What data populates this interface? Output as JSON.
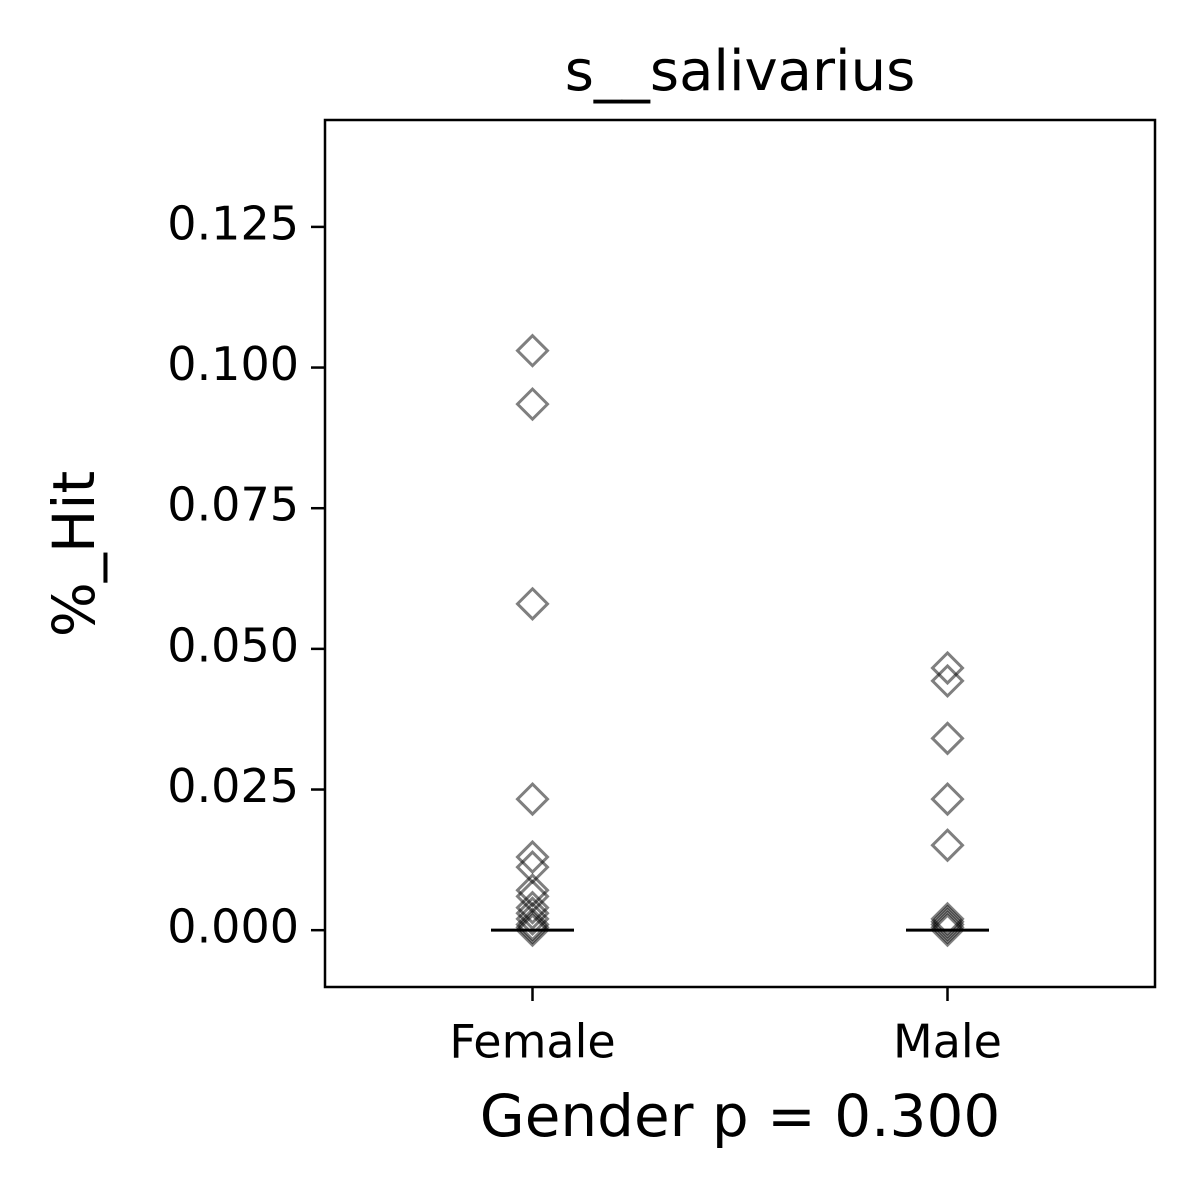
{
  "chart_data": {
    "type": "strip",
    "title": "s__salivarius",
    "x_label": "Gender p = 0.300",
    "y_label": "%_Hit",
    "categories": [
      "Female",
      "Male"
    ],
    "values": [
      [
        0.103,
        0.0935,
        0.058,
        0.0233,
        0.013,
        0.0112,
        0.0071,
        0.006,
        0.004,
        0.003,
        0.002,
        0.001,
        0.0005,
        0
      ],
      [
        0.0466,
        0.0443,
        0.0341,
        0.0233,
        0.0151,
        0.002,
        0.0015,
        0.001,
        0.0005,
        0
      ]
    ],
    "medians": [
      0,
      0
    ],
    "marker_color": "#000000",
    "marker_alpha": 0.5,
    "median_color": "#000000",
    "xlim": [
      -0.5,
      1.5
    ],
    "ylim": [
      -0.0101,
      0.144
    ],
    "yticks": [
      {
        "value": 0,
        "label": "0.000"
      },
      {
        "value": 0.025,
        "label": "0.025"
      },
      {
        "value": 0.05,
        "label": "0.050"
      },
      {
        "value": 0.075,
        "label": "0.075"
      },
      {
        "value": 0.1,
        "label": "0.100"
      },
      {
        "value": 0.125,
        "label": "0.125"
      }
    ]
  }
}
